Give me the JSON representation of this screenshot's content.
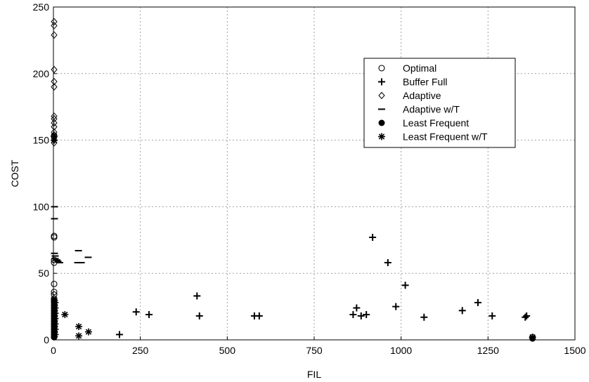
{
  "chart_data": {
    "type": "scatter",
    "xlabel": "FIL",
    "ylabel": "COST",
    "xlim": [
      0,
      1500
    ],
    "ylim": [
      0,
      250
    ],
    "xticks": [
      0,
      250,
      500,
      750,
      1000,
      1250,
      1500
    ],
    "yticks": [
      0,
      50,
      100,
      150,
      200,
      250
    ],
    "grid": true,
    "legend_position": "top-right",
    "series": [
      {
        "name": "Optimal",
        "marker": "circle-open",
        "points": [
          [
            2,
            78
          ],
          [
            2,
            77
          ],
          [
            2,
            60
          ],
          [
            2,
            58
          ],
          [
            2,
            42
          ],
          [
            2,
            36
          ],
          [
            2,
            34
          ],
          [
            2,
            31
          ],
          [
            2,
            29
          ],
          [
            2,
            28
          ],
          [
            2,
            26
          ],
          [
            2,
            24
          ],
          [
            2,
            22
          ],
          [
            2,
            20
          ],
          [
            2,
            18
          ],
          [
            2,
            16
          ],
          [
            2,
            14
          ],
          [
            2,
            12
          ],
          [
            2,
            10
          ],
          [
            2,
            8
          ],
          [
            2,
            6
          ],
          [
            2,
            4
          ],
          [
            2,
            2
          ],
          [
            1378,
            2
          ]
        ]
      },
      {
        "name": "Buffer Full",
        "marker": "plus",
        "points": [
          [
            190,
            4
          ],
          [
            238,
            21
          ],
          [
            275,
            19
          ],
          [
            413,
            33
          ],
          [
            420,
            18
          ],
          [
            578,
            18
          ],
          [
            592,
            18
          ],
          [
            862,
            19
          ],
          [
            872,
            24
          ],
          [
            885,
            18
          ],
          [
            900,
            19
          ],
          [
            918,
            77
          ],
          [
            962,
            58
          ],
          [
            985,
            25
          ],
          [
            1012,
            41
          ],
          [
            1066,
            17
          ],
          [
            1176,
            22
          ],
          [
            1221,
            28
          ],
          [
            1262,
            18
          ],
          [
            1357,
            17
          ],
          [
            1361,
            18
          ]
        ]
      },
      {
        "name": "Adaptive",
        "marker": "diamond-open",
        "points": [
          [
            2,
            239
          ],
          [
            2,
            236
          ],
          [
            2,
            229
          ],
          [
            2,
            203
          ],
          [
            2,
            194
          ],
          [
            2,
            190
          ],
          [
            2,
            168
          ],
          [
            2,
            166
          ],
          [
            2,
            163
          ],
          [
            2,
            160
          ],
          [
            2,
            156
          ],
          [
            2,
            154
          ],
          [
            2,
            152
          ],
          [
            2,
            150
          ],
          [
            2,
            148
          ]
        ]
      },
      {
        "name": "Adaptive w/T",
        "marker": "dash",
        "points": [
          [
            3,
            100
          ],
          [
            3,
            91
          ],
          [
            3,
            65
          ],
          [
            5,
            63
          ],
          [
            5,
            61
          ],
          [
            10,
            60
          ],
          [
            13,
            59
          ],
          [
            18,
            58
          ],
          [
            72,
            67
          ],
          [
            70,
            58
          ],
          [
            80,
            58
          ],
          [
            100,
            62
          ]
        ]
      },
      {
        "name": "Least Frequent",
        "marker": "circle-filled",
        "points": [
          [
            2,
            30
          ],
          [
            2,
            28
          ],
          [
            2,
            26
          ],
          [
            2,
            24
          ],
          [
            2,
            22
          ],
          [
            2,
            20
          ],
          [
            2,
            18
          ],
          [
            2,
            16
          ],
          [
            2,
            14
          ],
          [
            2,
            12
          ],
          [
            2,
            10
          ],
          [
            2,
            8
          ],
          [
            2,
            6
          ],
          [
            2,
            4
          ],
          [
            2,
            2
          ],
          [
            1378,
            1
          ]
        ]
      },
      {
        "name": "Least Frequent w/T",
        "marker": "asterisk",
        "points": [
          [
            2,
            153
          ],
          [
            2,
            150
          ],
          [
            5,
            28
          ],
          [
            5,
            24
          ],
          [
            5,
            20
          ],
          [
            5,
            16
          ],
          [
            5,
            12
          ],
          [
            5,
            8
          ],
          [
            5,
            4
          ],
          [
            33,
            19
          ],
          [
            73,
            10
          ],
          [
            73,
            3
          ],
          [
            101,
            6
          ],
          [
            1378,
            2
          ]
        ]
      }
    ]
  }
}
